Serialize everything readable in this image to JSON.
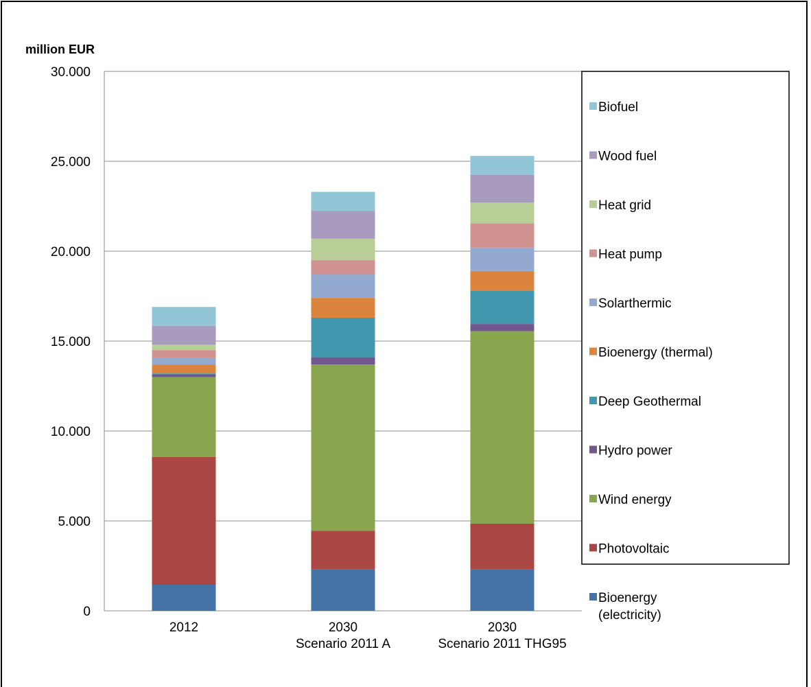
{
  "chart_data": {
    "type": "bar",
    "stacked": true,
    "ylabel": "million EUR",
    "ylim": [
      0,
      30000
    ],
    "yticks": [
      "0",
      "5.000",
      "10.000",
      "15.000",
      "20.000",
      "25.000",
      "30.000"
    ],
    "ytick_values": [
      0,
      5000,
      10000,
      15000,
      20000,
      25000,
      30000
    ],
    "grid": true,
    "legend_position": "right",
    "categories": [
      {
        "line1": "2012",
        "line2": ""
      },
      {
        "line1": "2030",
        "line2": "Scenario 2011 A"
      },
      {
        "line1": "2030",
        "line2": "Scenario 2011 THG95"
      }
    ],
    "series": [
      {
        "name": "Bioenergy (electricity)",
        "label_lines": [
          "Bioenergy",
          "(electricity)"
        ],
        "color": "#4572A7",
        "values": [
          1450,
          2300,
          2300
        ]
      },
      {
        "name": "Photovoltaic",
        "label_lines": [
          "Photovoltaic"
        ],
        "color": "#AA4643",
        "values": [
          7100,
          2150,
          2550
        ]
      },
      {
        "name": "Wind energy",
        "label_lines": [
          "Wind energy"
        ],
        "color": "#89A54E",
        "values": [
          4450,
          9250,
          10700
        ]
      },
      {
        "name": "Hydro power",
        "label_lines": [
          "Hydro power"
        ],
        "color": "#71588F",
        "values": [
          150,
          400,
          400
        ]
      },
      {
        "name": "Deep Geothermal",
        "label_lines": [
          "Deep Geothermal"
        ],
        "color": "#4198AF",
        "values": [
          50,
          2200,
          1850
        ]
      },
      {
        "name": "Bioenergy (thermal)",
        "label_lines": [
          "Bioenergy (thermal)"
        ],
        "color": "#DB843D",
        "values": [
          500,
          1100,
          1100
        ]
      },
      {
        "name": "Solarthermic",
        "label_lines": [
          "Solarthermic"
        ],
        "color": "#93A9CF",
        "values": [
          350,
          1300,
          1300
        ]
      },
      {
        "name": "Heat pump",
        "label_lines": [
          "Heat pump"
        ],
        "color": "#D19392",
        "values": [
          450,
          800,
          1350
        ]
      },
      {
        "name": "Heat grid",
        "label_lines": [
          "Heat grid"
        ],
        "color": "#B9CD96",
        "values": [
          300,
          1200,
          1150
        ]
      },
      {
        "name": "Wood fuel",
        "label_lines": [
          "Wood fuel"
        ],
        "color": "#A99BBD",
        "values": [
          1050,
          1550,
          1550
        ]
      },
      {
        "name": "Biofuel",
        "label_lines": [
          "Biofuel"
        ],
        "color": "#92C5D6",
        "values": [
          1050,
          1050,
          1050
        ]
      }
    ]
  }
}
